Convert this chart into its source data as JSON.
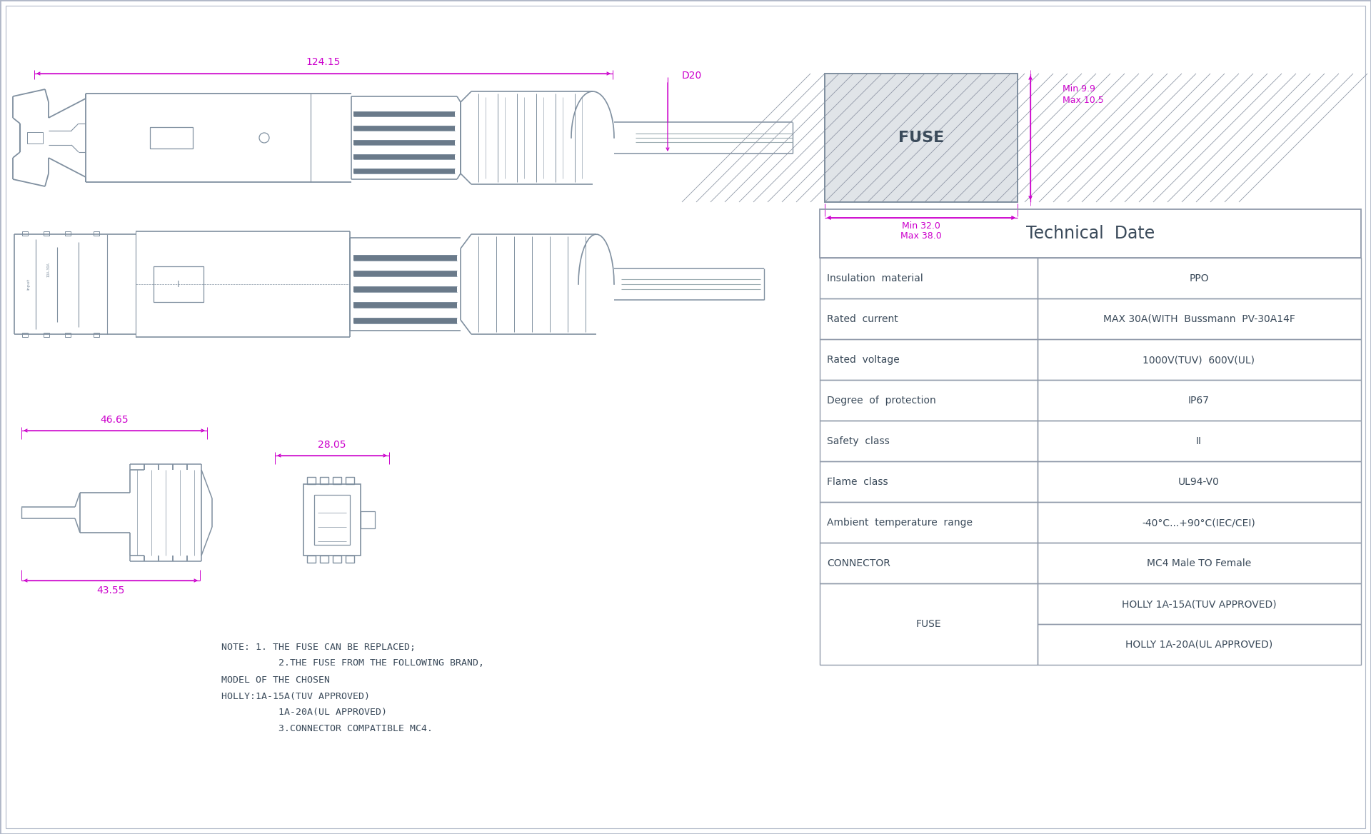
{
  "bg_color": "#ffffff",
  "line_color": "#8090a0",
  "dim_color": "#cc00cc",
  "text_color": "#3a4a5a",
  "title": "Technical  Date",
  "table_data": [
    {
      "label": "Insulation  material",
      "value": "PPO"
    },
    {
      "label": "Rated  current",
      "value": "MAX 30A(WITH  Bussmann  PV-30A14F"
    },
    {
      "label": "Rated  voltage",
      "value": "1000V(TUV)  600V(UL)"
    },
    {
      "label": "Degree  of  protection",
      "value": "IP67"
    },
    {
      "label": "Safety  class",
      "value": "II"
    },
    {
      "label": "Flame  class",
      "value": "UL94-V0"
    },
    {
      "label": "Ambient  temperature  range",
      "value": "-40°C...+90°C(IEC/CEI)"
    },
    {
      "label": "CONNECTOR",
      "value": "MC4 Male TO Female"
    },
    {
      "label": "FUSE",
      "value": "HOLLY 1A-15A(TUV APPROVED)",
      "value2": "HOLLY 1A-20A(UL APPROVED)"
    }
  ],
  "notes": [
    "NOTE: 1. THE FUSE CAN BE REPLACED;",
    "          2.THE FUSE FROM THE FOLLOWING BRAND,",
    "MODEL OF THE CHOSEN",
    "HOLLY:1A-15A(TUV APPROVED)",
    "          1A-20A(UL APPROVED)",
    "          3.CONNECTOR COMPATIBLE MC4."
  ],
  "dim_124": "124.15",
  "dim_d20": "D20",
  "dim_4665": "46.65",
  "dim_4355": "43.55",
  "dim_2805": "28.05",
  "dim_min32": "Min 32.0",
  "dim_max38": "Max 38.0",
  "dim_min99": "Min 9.9",
  "dim_max105": "Max 10.5",
  "fuse_label": "FUSE",
  "border_color": "#b0b8c8",
  "table_border": "#909aaa"
}
